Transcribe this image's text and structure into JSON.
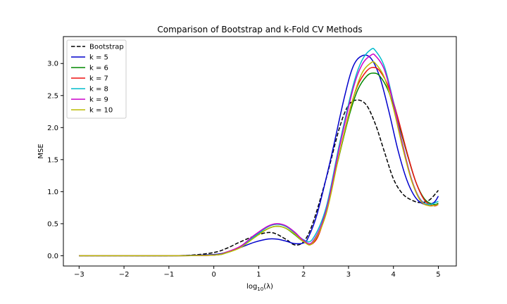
{
  "chart_data": {
    "type": "line",
    "title": "Comparison of Bootstrap and k-Fold CV Methods",
    "xlabel": "log",
    "xlabel_sub": "10",
    "xlabel_tail": "(λ)",
    "ylabel": "MSE",
    "xlim": [
      -3.35,
      5.4
    ],
    "ylim": [
      -0.16,
      3.42
    ],
    "xticks": [
      -3,
      -2,
      -1,
      0,
      1,
      2,
      3,
      4,
      5
    ],
    "xtick_labels": [
      "−3",
      "−2",
      "−1",
      "0",
      "1",
      "2",
      "3",
      "4",
      "5"
    ],
    "yticks": [
      0.0,
      0.5,
      1.0,
      1.5,
      2.0,
      2.5,
      3.0
    ],
    "ytick_labels": [
      "0.0",
      "0.5",
      "1.0",
      "1.5",
      "2.0",
      "2.5",
      "3.0"
    ],
    "grid": false,
    "legend_position": "top-left",
    "series": [
      {
        "name": "Bootstrap",
        "color": "#000000",
        "dash": true,
        "x": [
          -3,
          -2,
          -1,
          -0.5,
          0,
          0.3,
          0.6,
          1.0,
          1.3,
          1.6,
          1.8,
          2.0,
          2.2,
          2.5,
          2.8,
          3.0,
          3.2,
          3.4,
          3.6,
          3.8,
          4.0,
          4.2,
          4.4,
          4.6,
          4.8,
          5.0
        ],
        "y": [
          0.0,
          0.0,
          0.0,
          0.01,
          0.05,
          0.12,
          0.22,
          0.33,
          0.36,
          0.26,
          0.17,
          0.22,
          0.5,
          1.2,
          2.0,
          2.35,
          2.43,
          2.35,
          2.05,
          1.62,
          1.2,
          0.97,
          0.87,
          0.83,
          0.87,
          1.02
        ]
      },
      {
        "name": "k = 5",
        "color": "#0000cc",
        "dash": false,
        "x": [
          -3,
          -2,
          -1,
          0,
          0.3,
          0.6,
          0.9,
          1.2,
          1.4,
          1.6,
          1.8,
          2.0,
          2.1,
          2.3,
          2.6,
          2.9,
          3.1,
          3.3,
          3.5,
          3.7,
          3.9,
          4.1,
          4.3,
          4.5,
          4.7,
          4.9,
          5.0
        ],
        "y": [
          0.0,
          0.0,
          0.0,
          0.02,
          0.06,
          0.13,
          0.21,
          0.26,
          0.26,
          0.23,
          0.19,
          0.2,
          0.28,
          0.65,
          1.5,
          2.45,
          2.95,
          3.12,
          3.08,
          2.78,
          2.25,
          1.65,
          1.18,
          0.9,
          0.8,
          0.83,
          0.93
        ]
      },
      {
        "name": "k = 6",
        "color": "#008800",
        "dash": false,
        "x": [
          -3,
          -2,
          -1,
          0,
          0.3,
          0.6,
          0.9,
          1.2,
          1.4,
          1.6,
          1.8,
          2.0,
          2.2,
          2.4,
          2.7,
          3.0,
          3.2,
          3.4,
          3.55,
          3.7,
          3.9,
          4.1,
          4.3,
          4.5,
          4.7,
          4.9,
          5.0
        ],
        "y": [
          0.0,
          0.0,
          0.0,
          0.01,
          0.05,
          0.14,
          0.29,
          0.42,
          0.46,
          0.43,
          0.33,
          0.22,
          0.2,
          0.48,
          1.3,
          2.15,
          2.58,
          2.8,
          2.85,
          2.8,
          2.55,
          2.1,
          1.6,
          1.15,
          0.88,
          0.8,
          0.82
        ]
      },
      {
        "name": "k = 7",
        "color": "#ee1111",
        "dash": false,
        "x": [
          -3,
          -2,
          -1,
          0,
          0.3,
          0.6,
          0.9,
          1.2,
          1.4,
          1.6,
          1.8,
          2.0,
          2.2,
          2.4,
          2.7,
          3.0,
          3.2,
          3.4,
          3.55,
          3.7,
          3.9,
          4.1,
          4.3,
          4.5,
          4.7,
          4.9,
          5.0
        ],
        "y": [
          0.0,
          0.0,
          0.0,
          0.01,
          0.06,
          0.15,
          0.31,
          0.45,
          0.49,
          0.46,
          0.36,
          0.23,
          0.19,
          0.45,
          1.3,
          2.2,
          2.65,
          2.88,
          2.94,
          2.88,
          2.62,
          2.15,
          1.62,
          1.15,
          0.86,
          0.78,
          0.8
        ]
      },
      {
        "name": "k = 8",
        "color": "#00bbcc",
        "dash": false,
        "x": [
          -3,
          -2,
          -1,
          0,
          0.3,
          0.6,
          0.9,
          1.2,
          1.4,
          1.6,
          1.8,
          2.0,
          2.2,
          2.5,
          2.8,
          3.1,
          3.3,
          3.5,
          3.6,
          3.8,
          4.0,
          4.2,
          4.4,
          4.6,
          4.8,
          5.0
        ],
        "y": [
          0.0,
          0.0,
          0.0,
          0.01,
          0.05,
          0.14,
          0.3,
          0.45,
          0.49,
          0.46,
          0.36,
          0.25,
          0.26,
          0.75,
          1.75,
          2.65,
          3.05,
          3.22,
          3.2,
          2.95,
          2.4,
          1.75,
          1.2,
          0.88,
          0.8,
          0.85
        ]
      },
      {
        "name": "k = 9",
        "color": "#cc00cc",
        "dash": false,
        "x": [
          -3,
          -2,
          -1,
          0,
          0.3,
          0.6,
          0.9,
          1.2,
          1.4,
          1.6,
          1.8,
          2.0,
          2.2,
          2.5,
          2.8,
          3.1,
          3.3,
          3.5,
          3.6,
          3.8,
          4.0,
          4.2,
          4.4,
          4.6,
          4.8,
          5.0
        ],
        "y": [
          0.0,
          0.0,
          0.0,
          0.01,
          0.06,
          0.15,
          0.32,
          0.46,
          0.5,
          0.47,
          0.37,
          0.24,
          0.22,
          0.7,
          1.7,
          2.6,
          2.98,
          3.13,
          3.12,
          2.9,
          2.38,
          1.75,
          1.2,
          0.87,
          0.78,
          0.8
        ]
      },
      {
        "name": "k = 10",
        "color": "#bbbb00",
        "dash": false,
        "x": [
          -3,
          -2,
          -1,
          0,
          0.3,
          0.6,
          0.9,
          1.2,
          1.4,
          1.6,
          1.8,
          2.0,
          2.2,
          2.5,
          2.8,
          3.1,
          3.3,
          3.5,
          3.6,
          3.8,
          4.0,
          4.2,
          4.4,
          4.6,
          4.8,
          5.0
        ],
        "y": [
          0.0,
          0.0,
          0.0,
          0.01,
          0.05,
          0.13,
          0.28,
          0.42,
          0.46,
          0.43,
          0.34,
          0.22,
          0.2,
          0.65,
          1.6,
          2.45,
          2.85,
          3.01,
          3.0,
          2.78,
          2.3,
          1.7,
          1.18,
          0.86,
          0.78,
          0.8
        ]
      }
    ]
  }
}
